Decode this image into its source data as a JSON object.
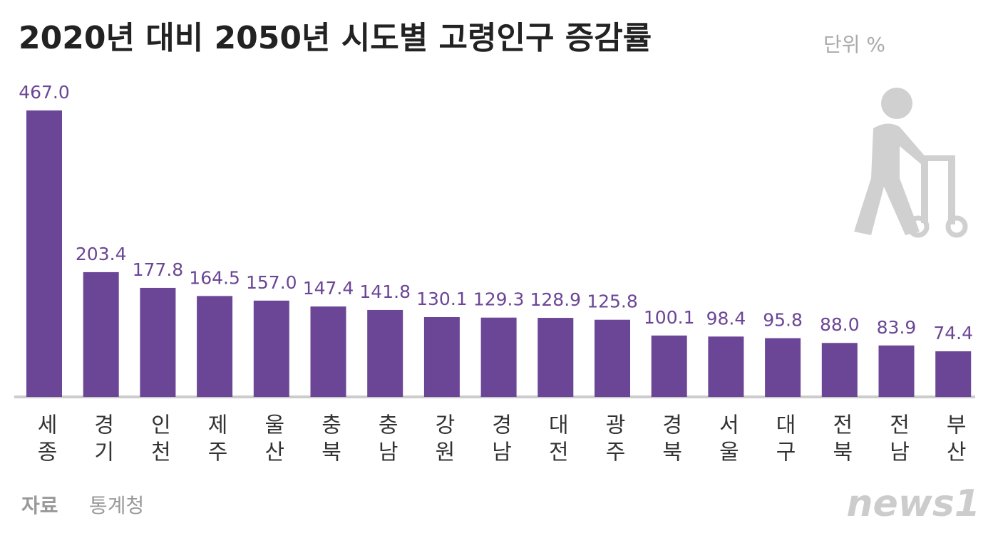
{
  "chart_data": {
    "type": "bar",
    "title": "2020년 대비 2050년 시도별 고령인구 증감률",
    "unit": "단위 %",
    "categories": [
      "세종",
      "경기",
      "인천",
      "제주",
      "울산",
      "충북",
      "충남",
      "강원",
      "경남",
      "대전",
      "광주",
      "경북",
      "서울",
      "대구",
      "전북",
      "전남",
      "부산"
    ],
    "values": [
      467,
      203.4,
      177.8,
      164.5,
      157,
      147.4,
      141.8,
      130.1,
      129.3,
      128.9,
      125.8,
      100.1,
      98.4,
      95.8,
      88,
      83.9,
      74.4
    ],
    "value_labels": [
      "467.0",
      "203.4",
      "177.8",
      "164.5",
      "157.0",
      "147.4",
      "141.8",
      "130.1",
      "129.3",
      "128.9",
      "125.8",
      "100.1",
      "98.4",
      "95.8",
      "88.0",
      "83.9",
      "74.4"
    ],
    "color": "#6b4696",
    "ylim": [
      0,
      467
    ],
    "source_label": "자료",
    "source": "통계청",
    "logo": "news1"
  }
}
